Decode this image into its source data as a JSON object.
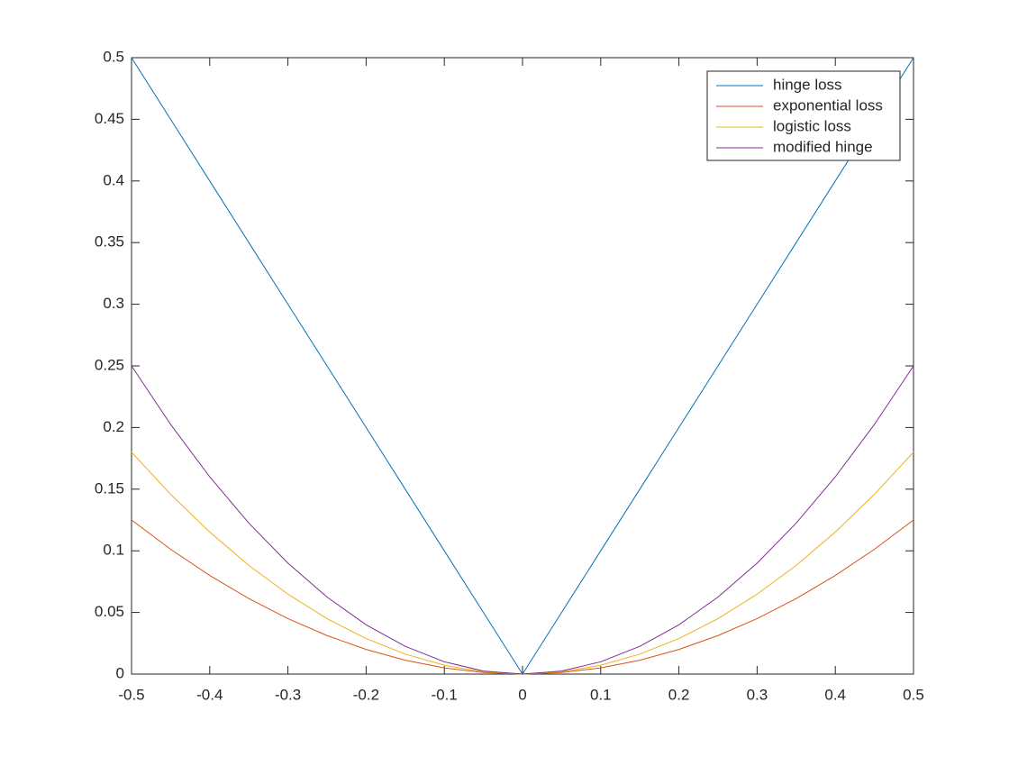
{
  "chart_data": {
    "type": "line",
    "x": [
      -0.5,
      -0.45,
      -0.4,
      -0.35,
      -0.3,
      -0.25,
      -0.2,
      -0.15,
      -0.1,
      -0.05,
      0,
      0.05,
      0.1,
      0.15,
      0.2,
      0.25,
      0.3,
      0.35,
      0.4,
      0.45,
      0.5
    ],
    "series": [
      {
        "name": "hinge loss",
        "color": "#0072BD",
        "values": [
          0.5,
          0.45,
          0.4,
          0.35,
          0.3,
          0.25,
          0.2,
          0.15,
          0.1,
          0.05,
          0,
          0.05,
          0.1,
          0.15,
          0.2,
          0.25,
          0.3,
          0.35,
          0.4,
          0.45,
          0.5
        ]
      },
      {
        "name": "exponential loss",
        "color": "#D95319",
        "values": [
          0.125,
          0.10125,
          0.08,
          0.06125,
          0.045,
          0.03125,
          0.02,
          0.01125,
          0.005,
          0.00125,
          0,
          0.00125,
          0.005,
          0.01125,
          0.02,
          0.03125,
          0.045,
          0.06125,
          0.08,
          0.10125,
          0.125
        ]
      },
      {
        "name": "logistic loss",
        "color": "#EDB120",
        "values": [
          0.18,
          0.1458,
          0.1152,
          0.0882,
          0.0648,
          0.045,
          0.0288,
          0.0162,
          0.0072,
          0.0018,
          0,
          0.0018,
          0.0072,
          0.0162,
          0.0288,
          0.045,
          0.0648,
          0.0882,
          0.1152,
          0.1458,
          0.18
        ]
      },
      {
        "name": "modified hinge",
        "color": "#7E2F8E",
        "values": [
          0.25,
          0.2025,
          0.16,
          0.1225,
          0.09,
          0.0625,
          0.04,
          0.0225,
          0.01,
          0.0025,
          0,
          0.0025,
          0.01,
          0.0225,
          0.04,
          0.0625,
          0.09,
          0.1225,
          0.16,
          0.2025,
          0.25
        ]
      }
    ],
    "xlim": [
      -0.5,
      0.5
    ],
    "xticks": [
      -0.5,
      -0.4,
      -0.3,
      -0.2,
      -0.1,
      0,
      0.1,
      0.2,
      0.3,
      0.4,
      0.5
    ],
    "ylim": [
      0,
      0.5
    ],
    "yticks": [
      0,
      0.05,
      0.1,
      0.15,
      0.2,
      0.25,
      0.3,
      0.35,
      0.4,
      0.45,
      0.5
    ],
    "grid": false,
    "legend": "northeast"
  }
}
